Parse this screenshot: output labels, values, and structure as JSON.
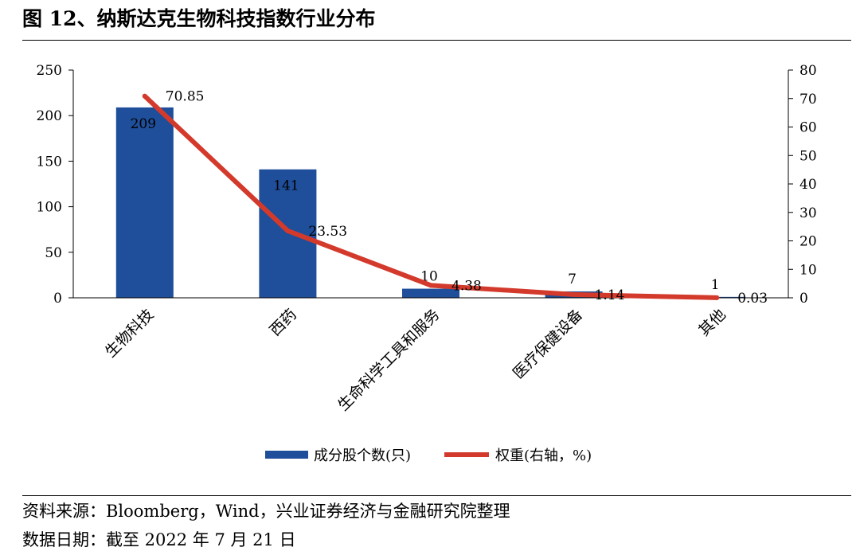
{
  "title": "图 12、纳斯达克生物科技指数行业分布",
  "footer": {
    "source": "资料来源：Bloomberg，Wind，兴业证券经济与金融研究院整理",
    "date": "数据日期：截至 2022 年 7 月 21 日"
  },
  "chart_data": {
    "type": "bar",
    "categories": [
      "生物科技",
      "西药",
      "生命科学工具和服务",
      "医疗保健设备",
      "其他"
    ],
    "series": [
      {
        "name": "成分股个数(只)",
        "type": "bar",
        "axis": "left",
        "color": "#1f4e9a",
        "values": [
          209,
          141,
          10,
          7,
          1
        ]
      },
      {
        "name": "权重(右轴，%)",
        "type": "line",
        "axis": "right",
        "color": "#d33a2c",
        "values": [
          70.85,
          23.53,
          4.38,
          1.14,
          0.03
        ]
      }
    ],
    "y_left": {
      "range": [
        0,
        250
      ],
      "ticks": [
        0,
        50,
        100,
        150,
        200,
        250
      ]
    },
    "y_right": {
      "range": [
        0,
        80
      ],
      "ticks": [
        0,
        10,
        20,
        30,
        40,
        50,
        60,
        70,
        80
      ]
    },
    "grid": false,
    "legend_position": "bottom"
  }
}
